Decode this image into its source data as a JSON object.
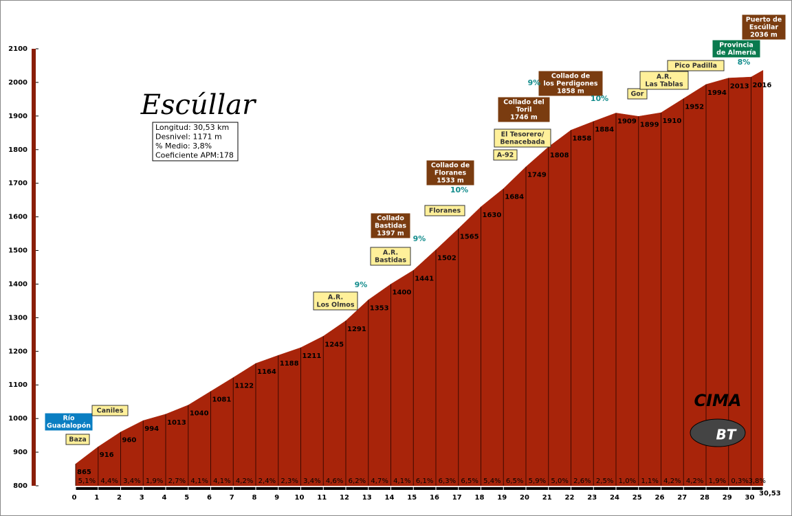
{
  "chart_data": {
    "type": "profile",
    "title": "Escúllar",
    "stats": [
      "Longitud: 30,53 km",
      "Desnivel: 1171 m",
      "% Medio: 3,8%",
      "Coeficiente APM:178"
    ],
    "x": [
      0,
      1,
      2,
      3,
      4,
      5,
      6,
      7,
      8,
      9,
      10,
      11,
      12,
      13,
      14,
      15,
      16,
      17,
      18,
      19,
      20,
      21,
      22,
      23,
      24,
      25,
      26,
      27,
      28,
      29,
      30,
      30.53
    ],
    "elevations": [
      865,
      916,
      960,
      994,
      1013,
      1040,
      1081,
      1122,
      1164,
      1188,
      1211,
      1245,
      1291,
      1353,
      1400,
      1441,
      1502,
      1565,
      1630,
      1684,
      1749,
      1808,
      1858,
      1884,
      1909,
      1899,
      1910,
      1952,
      1994,
      2013,
      2016,
      2036
    ],
    "gradients": [
      "5,1%",
      "4,4%",
      "3,4%",
      "1,9%",
      "2,7%",
      "4,1%",
      "4,1%",
      "4,2%",
      "2,4%",
      "2,3%",
      "3,4%",
      "4,6%",
      "6,2%",
      "4,7%",
      "4,1%",
      "6,1%",
      "6,3%",
      "6,5%",
      "5,4%",
      "6,5%",
      "5,9%",
      "5,0%",
      "2,6%",
      "2,5%",
      "1,0%",
      "1,1%",
      "4,2%",
      "4,2%",
      "1,9%",
      "0,3%",
      "3,8%"
    ],
    "color": "#a8240a",
    "xlim": [
      0,
      30.53
    ],
    "xticks": [
      0,
      1,
      2,
      3,
      4,
      5,
      6,
      7,
      8,
      9,
      10,
      11,
      12,
      13,
      14,
      15,
      16,
      17,
      18,
      19,
      20,
      21,
      22,
      23,
      24,
      25,
      26,
      27,
      28,
      29,
      30,
      {
        "value": 30.53,
        "label": "30,53"
      }
    ],
    "ylim": [
      800,
      2100
    ],
    "yticks": [
      800,
      900,
      1000,
      1100,
      1200,
      1300,
      1400,
      1500,
      1600,
      1700,
      1800,
      1900,
      2000,
      2100
    ],
    "landmarks": [
      {
        "lines": [
          "Río",
          "Guadalopón"
        ],
        "color": "#0a7ec2"
      },
      {
        "lines": [
          "Baza"
        ],
        "color": "#fff09a"
      },
      {
        "lines": [
          "Caniles"
        ],
        "color": "#fff09a"
      },
      {
        "lines": [
          "A.R.",
          "Los Olmos"
        ],
        "color": "#fff09a"
      },
      {
        "lines": [
          "Collado",
          "Bastidas",
          "1397 m"
        ],
        "color": "#7a3c10"
      },
      {
        "lines": [
          "A.R.",
          "Bastidas"
        ],
        "color": "#fff09a"
      },
      {
        "lines": [
          "Collado de",
          "Floranes",
          "1533 m"
        ],
        "color": "#7a3c10"
      },
      {
        "lines": [
          "Floranes"
        ],
        "color": "#fff09a"
      },
      {
        "lines": [
          "A-92"
        ],
        "color": "#fff09a"
      },
      {
        "lines": [
          "El Tesorero/",
          "Benacebada"
        ],
        "color": "#fff09a"
      },
      {
        "lines": [
          "Collado del",
          "Toril",
          "1746 m"
        ],
        "color": "#7a3c10"
      },
      {
        "lines": [
          "Collado de",
          "los Perdigones",
          "1858 m"
        ],
        "color": "#7a3c10"
      },
      {
        "lines": [
          "Gor"
        ],
        "color": "#fff09a"
      },
      {
        "lines": [
          "A.R.",
          "Las Tablas"
        ],
        "color": "#fff09a"
      },
      {
        "lines": [
          "Pico Padilla"
        ],
        "color": "#fff09a"
      },
      {
        "lines": [
          "Provincia",
          "de Almería"
        ],
        "color": "#0a7a4e"
      },
      {
        "lines": [
          "Puerto de",
          "Escúllar",
          "2036 m"
        ],
        "color": "#7a3c10"
      }
    ],
    "ramps": [
      "9%",
      "9%",
      "10%",
      "9%",
      "10%",
      "8%"
    ],
    "logo": [
      "CIMA",
      "BT"
    ]
  }
}
